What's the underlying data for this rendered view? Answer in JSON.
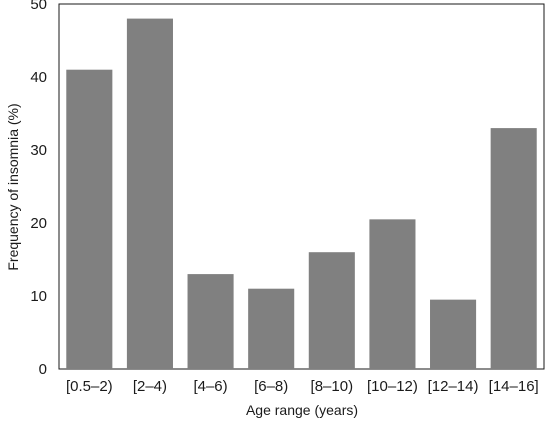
{
  "chart_data": {
    "type": "bar",
    "categories": [
      "[0.5–2)",
      "[2–4)",
      "[4–6)",
      "[6–8)",
      "[8–10)",
      "[10–12)",
      "[12–14)",
      "[14–16]"
    ],
    "values": [
      41,
      48,
      13,
      11,
      16,
      20.5,
      9.5,
      33
    ],
    "xlabel": "Age range (years)",
    "ylabel": "Frequency of insomnia (%)",
    "ylim": [
      0,
      50
    ],
    "yticks": [
      "0",
      "10",
      "20",
      "30",
      "40",
      "50"
    ],
    "grid": false,
    "legend": "none",
    "bar_color": "#808080",
    "axis_color": "#1a1a1a"
  }
}
